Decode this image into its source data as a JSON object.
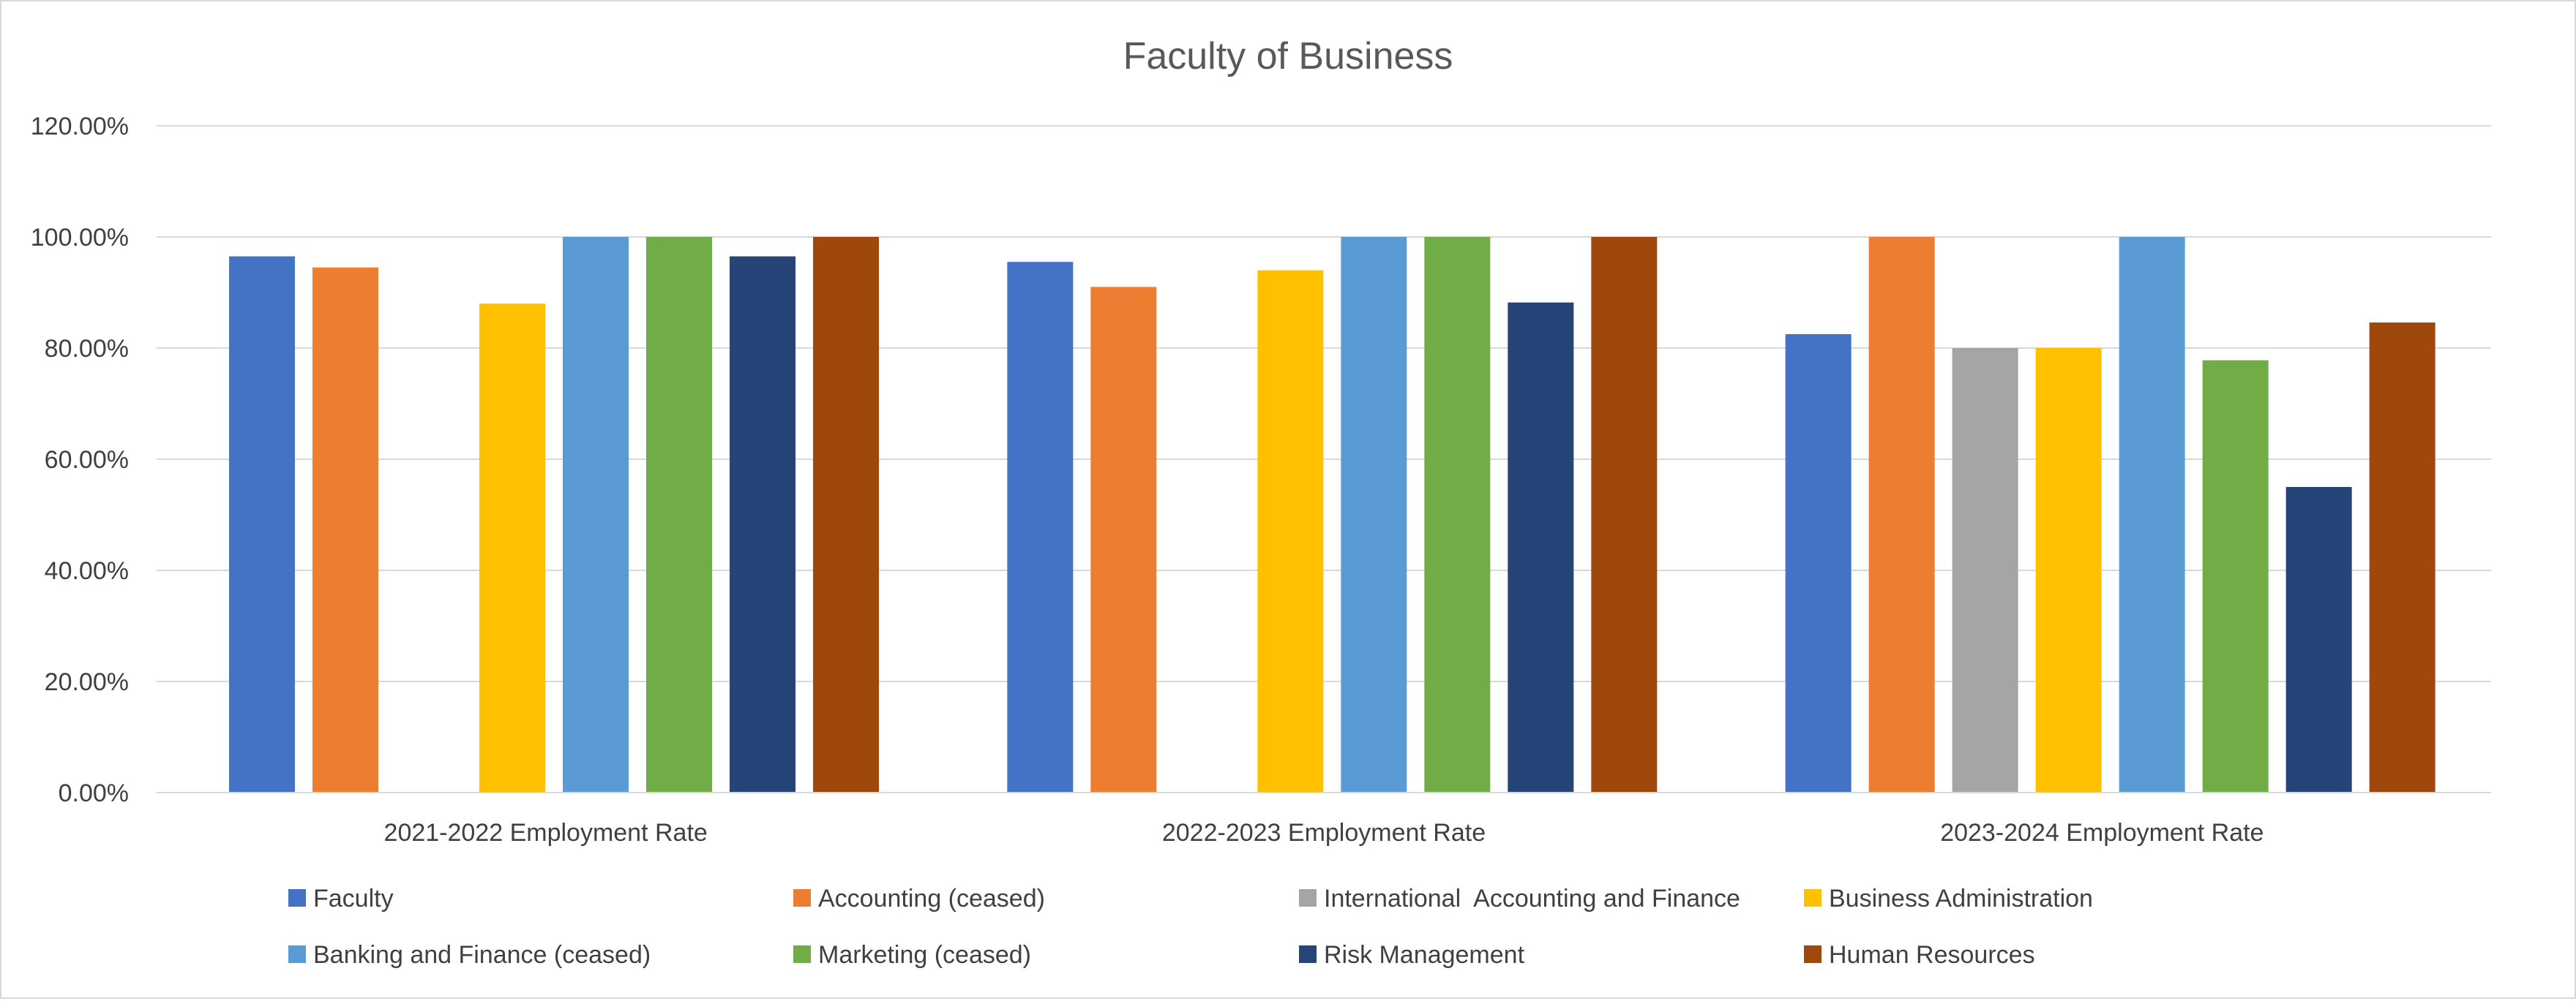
{
  "chart_data": {
    "type": "bar",
    "title": "Faculty of Business",
    "xlabel": "",
    "ylabel": "",
    "ylim": [
      0,
      1.2
    ],
    "y_ticks": [
      {
        "value": 0,
        "label": "0.00%"
      },
      {
        "value": 0.2,
        "label": "20.00%"
      },
      {
        "value": 0.4,
        "label": "40.00%"
      },
      {
        "value": 0.6,
        "label": "60.00%"
      },
      {
        "value": 0.8,
        "label": "80.00%"
      },
      {
        "value": 1.0,
        "label": "100.00%"
      },
      {
        "value": 1.2,
        "label": "120.00%"
      }
    ],
    "grid": true,
    "legend_position": "bottom",
    "categories": [
      "2021-2022 Employment Rate",
      "2022-2023 Employment Rate",
      "2023-2024 Employment Rate"
    ],
    "series": [
      {
        "name": "Faculty",
        "color": "#4472c4",
        "values": [
          0.965,
          0.955,
          0.825
        ]
      },
      {
        "name": "Accounting (ceased)",
        "color": "#ed7d31",
        "values": [
          0.945,
          0.91,
          1.0
        ]
      },
      {
        "name": "International  Accounting and Finance",
        "color": "#a5a5a5",
        "values": [
          null,
          null,
          0.8
        ]
      },
      {
        "name": "Business Administration",
        "color": "#ffc000",
        "values": [
          0.88,
          0.94,
          0.8
        ]
      },
      {
        "name": "Banking and Finance (ceased)",
        "color": "#5b9bd5",
        "values": [
          1.0,
          1.0,
          1.0
        ]
      },
      {
        "name": "Marketing (ceased)",
        "color": "#70ad47",
        "values": [
          1.0,
          1.0,
          0.778
        ]
      },
      {
        "name": "Risk Management",
        "color": "#264478",
        "values": [
          0.965,
          0.882,
          0.55
        ]
      },
      {
        "name": "Human Resources",
        "color": "#9e480e",
        "values": [
          1.0,
          1.0,
          0.846
        ]
      }
    ]
  },
  "colors": {
    "axis": "#d9d9d9",
    "gridline": "#d9d9d9",
    "title_text": "#595959",
    "label_text": "#404040"
  }
}
